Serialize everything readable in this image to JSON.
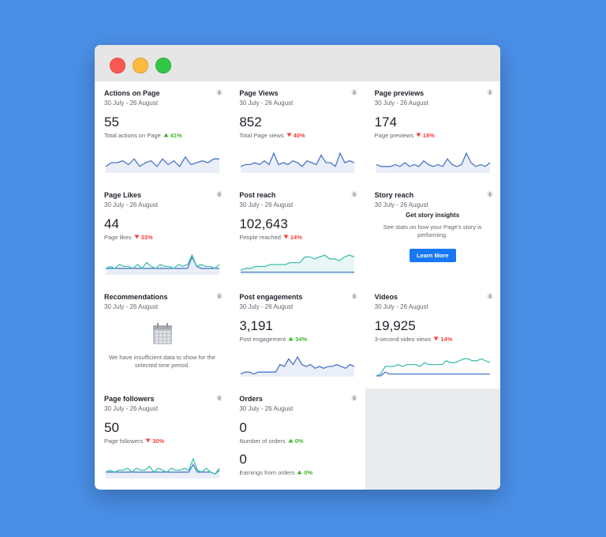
{
  "cards": [
    {
      "title": "Actions on Page",
      "date": "30 July - 26 August",
      "value": "55",
      "caption": "Total actions on Page",
      "change": "41%",
      "direction": "up",
      "sparkline": [
        {
          "color": "#4a76c8",
          "fill": true,
          "values": [
            3,
            5,
            5,
            6,
            4,
            7,
            3,
            5,
            6,
            3,
            7,
            4,
            6,
            3,
            8,
            4,
            5,
            6,
            5,
            7,
            7
          ]
        }
      ]
    },
    {
      "title": "Page Views",
      "date": "30 July - 26 August",
      "value": "852",
      "caption": "Total Page views",
      "change": "40%",
      "direction": "down",
      "sparkline": [
        {
          "color": "#4a76c8",
          "fill": true,
          "values": [
            3,
            4,
            4,
            5,
            4,
            6,
            4,
            10,
            4,
            5,
            4,
            6,
            5,
            3,
            6,
            5,
            4,
            9,
            5,
            5,
            3,
            10,
            5,
            6,
            5
          ]
        }
      ]
    },
    {
      "title": "Page previews",
      "date": "30 July - 26 August",
      "value": "174",
      "caption": "Page previews",
      "change": "18%",
      "direction": "down",
      "sparkline": [
        {
          "color": "#4a76c8",
          "fill": true,
          "values": [
            4,
            3,
            3,
            3,
            4,
            3,
            5,
            3,
            4,
            3,
            6,
            4,
            3,
            4,
            3,
            7,
            4,
            3,
            4,
            10,
            5,
            3,
            4,
            3,
            5
          ]
        }
      ]
    },
    {
      "title": "Page Likes",
      "date": "30 July - 26 August",
      "value": "44",
      "caption": "Page likes",
      "change": "33%",
      "direction": "down",
      "sparkline": [
        {
          "color": "#4a76c8",
          "fill": true,
          "values": [
            3,
            3,
            3,
            3,
            3,
            3,
            3,
            3,
            3,
            3,
            3,
            3,
            3,
            3,
            3,
            3,
            3,
            3,
            3,
            9,
            4,
            3,
            3,
            3,
            3,
            3
          ]
        },
        {
          "color": "#3fbfad",
          "fill": false,
          "values": [
            3,
            4,
            3,
            5,
            4,
            4,
            3,
            5,
            3,
            6,
            4,
            3,
            5,
            4,
            4,
            3,
            5,
            4,
            5,
            10,
            4,
            5,
            4,
            4,
            3,
            5
          ]
        }
      ]
    },
    {
      "title": "Post reach",
      "date": "30 July - 26 August",
      "value": "102,643",
      "caption": "People reached",
      "change": "14%",
      "direction": "down",
      "sparkline": [
        {
          "color": "#3fbfad",
          "fill": true,
          "values": [
            2,
            3,
            3,
            4,
            4,
            4,
            5,
            5,
            5,
            5,
            6,
            6,
            6,
            9,
            9,
            8,
            9,
            10,
            8,
            8,
            7,
            9,
            10,
            9
          ]
        },
        {
          "color": "#4a76c8",
          "fill": false,
          "values": [
            1,
            1,
            1,
            1,
            1,
            1,
            1,
            1,
            1,
            1,
            1,
            1,
            1,
            1,
            1,
            1,
            1,
            1,
            1,
            1,
            1,
            1,
            1,
            1
          ]
        }
      ]
    },
    {
      "title": "Story reach",
      "date": "30 July - 26 August",
      "heading": "Get story insights",
      "text": "See stats on how your Page's story is performing.",
      "button": "Learn More"
    },
    {
      "title": "Recommendations",
      "date": "30 July - 26 August",
      "empty_text": "We have insufficient data to show for the selected time period."
    },
    {
      "title": "Post engagements",
      "date": "30 July - 26 August",
      "value": "3,191",
      "caption": "Post engagement",
      "change": "34%",
      "direction": "up",
      "sparkline": [
        {
          "color": "#4a76c8",
          "fill": true,
          "values": [
            1,
            2,
            2,
            1,
            2,
            2,
            2,
            2,
            2,
            6,
            5,
            9,
            6,
            10,
            6,
            5,
            6,
            4,
            5,
            4,
            5,
            5,
            6,
            5,
            4,
            6,
            5
          ]
        }
      ]
    },
    {
      "title": "Videos",
      "date": "30 July - 26 August",
      "value": "19,925",
      "caption": "3-second video views",
      "change": "14%",
      "direction": "down",
      "sparkline": [
        {
          "color": "#3fbfad",
          "fill": false,
          "values": [
            0,
            1,
            5,
            5,
            5,
            6,
            5,
            6,
            6,
            6,
            5,
            7,
            6,
            6,
            6,
            6,
            8,
            7,
            7,
            8,
            9,
            9,
            8,
            8,
            9,
            8,
            7
          ]
        },
        {
          "color": "#4a76c8",
          "fill": false,
          "values": [
            0,
            0,
            2,
            1,
            1,
            1,
            1,
            1,
            1,
            1,
            1,
            1,
            1,
            1,
            1,
            1,
            1,
            1,
            1,
            1,
            1,
            1,
            1,
            1,
            1,
            1,
            1
          ]
        }
      ]
    },
    {
      "title": "Page followers",
      "date": "30 July - 26 August",
      "value": "50",
      "caption": "Page followers",
      "change": "30%",
      "direction": "down",
      "sparkline": [
        {
          "color": "#4a76c8",
          "fill": true,
          "values": [
            3,
            3,
            3,
            3,
            3,
            3,
            3,
            3,
            3,
            3,
            3,
            3,
            3,
            3,
            3,
            3,
            3,
            3,
            3,
            3,
            7,
            3,
            3,
            3,
            3,
            2,
            4
          ]
        },
        {
          "color": "#3fbfad",
          "fill": false,
          "values": [
            3,
            4,
            3,
            4,
            4,
            5,
            3,
            5,
            4,
            4,
            6,
            3,
            5,
            4,
            3,
            5,
            4,
            4,
            5,
            4,
            10,
            4,
            3,
            5,
            3,
            2,
            5
          ]
        }
      ]
    },
    {
      "title": "Orders",
      "date": "30 July - 26 August",
      "metrics": [
        {
          "value": "0",
          "caption": "Number of orders",
          "change": "0%",
          "direction": "up"
        },
        {
          "value": "0",
          "caption": "Earnings from orders",
          "change": "0%",
          "direction": "up"
        }
      ]
    }
  ]
}
